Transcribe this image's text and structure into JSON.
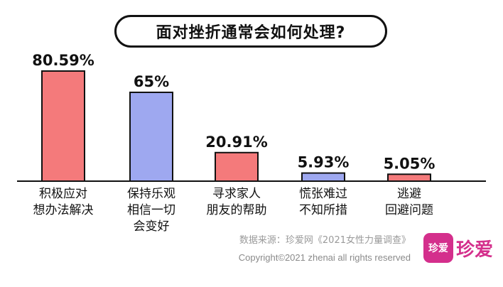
{
  "chart_data": {
    "type": "bar",
    "title": "面对挫折通常会如何处理?",
    "categories": [
      [
        "积极应对",
        "想办法解决"
      ],
      [
        "保持乐观",
        "相信一切",
        "会变好"
      ],
      [
        "寻求家人",
        "朋友的帮助"
      ],
      [
        "慌张难过",
        "不知所措"
      ],
      [
        "逃避",
        "回避问题"
      ]
    ],
    "values": [
      80.59,
      65,
      20.91,
      5.93,
      5.05
    ],
    "value_labels": [
      "80.59%",
      "65%",
      "20.91%",
      "5.93%",
      "5.05%"
    ],
    "bar_colors": [
      "#f47a7b",
      "#9ea8f0",
      "#f47a7b",
      "#9ea8f0",
      "#f47a7b"
    ],
    "ylim": [
      0,
      80.59
    ],
    "grid": false,
    "legend": "none"
  },
  "footer": {
    "source": "数据来源：珍爱网《2021女性力量调查》",
    "copyright": "Copyright©2021  zhenai  all rights reserved"
  },
  "logo": {
    "mark_text": "珍爱",
    "text": "珍爱",
    "color": "#d42f8c"
  }
}
